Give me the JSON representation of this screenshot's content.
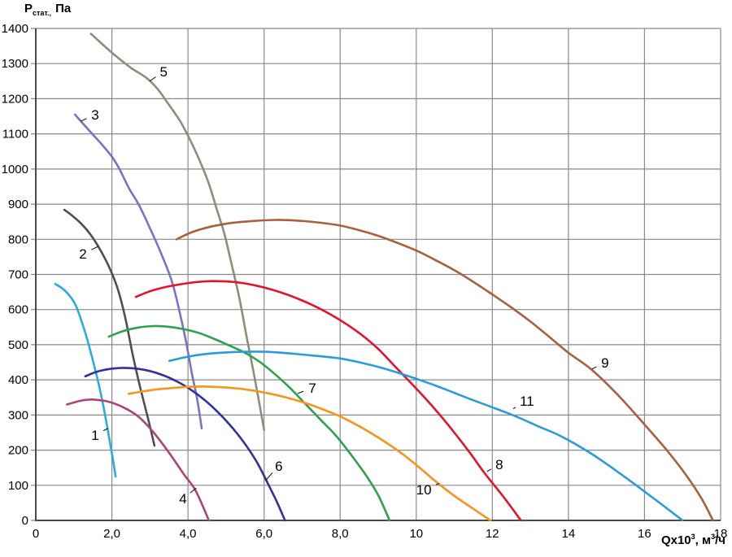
{
  "figure": {
    "y_axis_title": {
      "symbol": "Р",
      "subscript": "стат.,",
      "unit": "Па"
    },
    "x_axis_title": {
      "prefix": "Qx10",
      "sup1": "3",
      "mid": ", м",
      "sup2": "3",
      "suffix": "/ч"
    }
  },
  "colors": {
    "grid": "#8a8a8a",
    "axis": "#4a4a4a",
    "text": "#000000",
    "leader": "#1a1a1a"
  },
  "chart_data": {
    "type": "line",
    "title": "",
    "ylabel": "Р стат., Па",
    "xlabel": "Qx10³, м³/ч",
    "xlim": [
      0,
      18
    ],
    "ylim": [
      0,
      1400
    ],
    "grid": true,
    "legend_position": "none",
    "y_ticks": [
      1400,
      1300,
      1200,
      1100,
      1000,
      900,
      800,
      700,
      600,
      500,
      400,
      300,
      200,
      100,
      0
    ],
    "x_ticks": [
      {
        "label": "0",
        "value": 0
      },
      {
        "label": "2,0",
        "value": 2
      },
      {
        "label": "4,0",
        "value": 4
      },
      {
        "label": "6,0",
        "value": 6
      },
      {
        "label": "8,0",
        "value": 8
      },
      {
        "label": "10",
        "value": 10
      },
      {
        "label": "12",
        "value": 12
      },
      {
        "label": "14",
        "value": 14
      },
      {
        "label": "16",
        "value": 16
      },
      {
        "label": "18",
        "value": 18
      }
    ],
    "series": [
      {
        "id": "1",
        "label": "1",
        "color": "#2aabe2",
        "label_pos": [
          1.56,
          243
        ],
        "leader_end": [
          1.9,
          262
        ],
        "points": [
          [
            0.51,
            673
          ],
          [
            0.7,
            660
          ],
          [
            0.9,
            638
          ],
          [
            1.05,
            612
          ],
          [
            1.2,
            568
          ],
          [
            1.35,
            516
          ],
          [
            1.5,
            455
          ],
          [
            1.65,
            390
          ],
          [
            1.8,
            312
          ],
          [
            1.95,
            222
          ],
          [
            2.1,
            125
          ]
        ]
      },
      {
        "id": "2",
        "label": "2",
        "color": "#4d4d57",
        "label_pos": [
          1.24,
          759
        ],
        "leader_end": [
          1.65,
          780
        ],
        "points": [
          [
            0.75,
            884
          ],
          [
            0.95,
            868
          ],
          [
            1.2,
            844
          ],
          [
            1.45,
            812
          ],
          [
            1.7,
            769
          ],
          [
            1.95,
            716
          ],
          [
            2.15,
            660
          ],
          [
            2.35,
            578
          ],
          [
            2.55,
            470
          ],
          [
            2.75,
            376
          ],
          [
            2.95,
            290
          ],
          [
            3.12,
            213
          ]
        ]
      },
      {
        "id": "3",
        "label": "3",
        "color": "#7873c5",
        "label_pos": [
          1.56,
          1155
        ],
        "leader_end": [
          1.18,
          1136
        ],
        "points": [
          [
            1.03,
            1155
          ],
          [
            1.25,
            1128
          ],
          [
            1.5,
            1098
          ],
          [
            1.75,
            1068
          ],
          [
            2.0,
            1035
          ],
          [
            2.2,
            1000
          ],
          [
            2.45,
            945
          ],
          [
            2.7,
            900
          ],
          [
            3.0,
            832
          ],
          [
            3.3,
            758
          ],
          [
            3.6,
            672
          ],
          [
            3.9,
            535
          ],
          [
            4.1,
            420
          ],
          [
            4.25,
            340
          ],
          [
            4.36,
            262
          ]
        ]
      },
      {
        "id": "4",
        "label": "4",
        "color": "#ad4478",
        "label_pos": [
          3.87,
          62
        ],
        "leader_end": [
          4.22,
          92
        ],
        "points": [
          [
            0.82,
            330
          ],
          [
            1.2,
            341
          ],
          [
            1.5,
            344
          ],
          [
            1.9,
            338
          ],
          [
            2.3,
            322
          ],
          [
            2.7,
            295
          ],
          [
            3.1,
            250
          ],
          [
            3.5,
            193
          ],
          [
            3.9,
            130
          ],
          [
            4.2,
            85
          ],
          [
            4.55,
            0
          ]
        ]
      },
      {
        "id": "5",
        "label": "5",
        "color": "#8e8d79",
        "label_pos": [
          3.36,
          1277
        ],
        "leader_end": [
          2.99,
          1250
        ],
        "points": [
          [
            1.45,
            1385
          ],
          [
            1.75,
            1355
          ],
          [
            2.1,
            1322
          ],
          [
            2.5,
            1288
          ],
          [
            2.9,
            1260
          ],
          [
            3.2,
            1228
          ],
          [
            3.5,
            1183
          ],
          [
            3.8,
            1135
          ],
          [
            4.1,
            1073
          ],
          [
            4.35,
            1013
          ],
          [
            4.55,
            958
          ],
          [
            4.75,
            888
          ],
          [
            4.95,
            818
          ],
          [
            5.15,
            728
          ],
          [
            5.35,
            633
          ],
          [
            5.55,
            518
          ],
          [
            5.72,
            424
          ],
          [
            5.88,
            330
          ],
          [
            6.0,
            258
          ]
        ]
      },
      {
        "id": "6",
        "label": "6",
        "color": "#31319b",
        "label_pos": [
          6.39,
          155
        ],
        "leader_end": [
          6.03,
          113
        ],
        "points": [
          [
            1.3,
            410
          ],
          [
            1.6,
            423
          ],
          [
            1.95,
            431
          ],
          [
            2.3,
            434
          ],
          [
            2.65,
            432
          ],
          [
            3.0,
            425
          ],
          [
            3.35,
            413
          ],
          [
            3.7,
            396
          ],
          [
            4.05,
            374
          ],
          [
            4.4,
            346
          ],
          [
            4.75,
            312
          ],
          [
            5.1,
            272
          ],
          [
            5.45,
            225
          ],
          [
            5.8,
            168
          ],
          [
            6.1,
            105
          ],
          [
            6.35,
            50
          ],
          [
            6.55,
            0
          ]
        ]
      },
      {
        "id": "7",
        "label": "7",
        "color": "#2ca24c",
        "label_pos": [
          7.27,
          377
        ],
        "leader_end": [
          6.88,
          361
        ],
        "points": [
          [
            1.92,
            523
          ],
          [
            2.3,
            539
          ],
          [
            2.7,
            549
          ],
          [
            3.1,
            553
          ],
          [
            3.5,
            551
          ],
          [
            3.9,
            544
          ],
          [
            4.3,
            533
          ],
          [
            4.7,
            516
          ],
          [
            5.1,
            497
          ],
          [
            5.5,
            477
          ],
          [
            5.9,
            450
          ],
          [
            6.3,
            415
          ],
          [
            6.7,
            375
          ],
          [
            7.1,
            330
          ],
          [
            7.5,
            285
          ],
          [
            7.9,
            240
          ],
          [
            8.3,
            185
          ],
          [
            8.7,
            125
          ],
          [
            9.0,
            72
          ],
          [
            9.3,
            0
          ]
        ]
      },
      {
        "id": "8",
        "label": "8",
        "color": "#e4122b",
        "label_pos": [
          12.18,
          160
        ],
        "leader_end": [
          11.86,
          139
        ],
        "points": [
          [
            2.63,
            636
          ],
          [
            3.0,
            652
          ],
          [
            3.4,
            664
          ],
          [
            3.8,
            672
          ],
          [
            4.2,
            678
          ],
          [
            4.6,
            681
          ],
          [
            5.0,
            680
          ],
          [
            5.4,
            676
          ],
          [
            5.8,
            668
          ],
          [
            6.2,
            657
          ],
          [
            6.6,
            643
          ],
          [
            7.0,
            626
          ],
          [
            7.4,
            606
          ],
          [
            7.8,
            583
          ],
          [
            8.2,
            556
          ],
          [
            8.6,
            525
          ],
          [
            9.0,
            488
          ],
          [
            9.4,
            443
          ],
          [
            9.8,
            398
          ],
          [
            10.2,
            352
          ],
          [
            10.6,
            303
          ],
          [
            11.0,
            250
          ],
          [
            11.4,
            194
          ],
          [
            11.8,
            134
          ],
          [
            12.3,
            66
          ],
          [
            12.75,
            0
          ]
        ]
      },
      {
        "id": "9",
        "label": "9",
        "color": "#a8603f",
        "label_pos": [
          14.96,
          449
        ],
        "leader_end": [
          14.62,
          431
        ],
        "points": [
          [
            3.7,
            800
          ],
          [
            4.1,
            820
          ],
          [
            4.6,
            836
          ],
          [
            5.1,
            846
          ],
          [
            5.7,
            852
          ],
          [
            6.3,
            855
          ],
          [
            6.9,
            853
          ],
          [
            7.5,
            847
          ],
          [
            8.0,
            839
          ],
          [
            8.5,
            826
          ],
          [
            9.0,
            810
          ],
          [
            9.5,
            790
          ],
          [
            10.0,
            768
          ],
          [
            10.5,
            741
          ],
          [
            11.0,
            712
          ],
          [
            11.5,
            679
          ],
          [
            12.0,
            643
          ],
          [
            12.5,
            606
          ],
          [
            13.0,
            566
          ],
          [
            13.5,
            522
          ],
          [
            14.0,
            477
          ],
          [
            14.6,
            430
          ],
          [
            15.3,
            357
          ],
          [
            16.0,
            273
          ],
          [
            16.6,
            198
          ],
          [
            17.1,
            128
          ],
          [
            17.5,
            62
          ],
          [
            17.8,
            0
          ]
        ]
      },
      {
        "id": "10",
        "label": "10",
        "color": "#f7941d",
        "label_pos": [
          10.2,
          88
        ],
        "leader_end": [
          10.6,
          105
        ],
        "points": [
          [
            2.44,
            360
          ],
          [
            2.8,
            367
          ],
          [
            3.2,
            373
          ],
          [
            3.6,
            377
          ],
          [
            4.0,
            380
          ],
          [
            4.5,
            381
          ],
          [
            5.0,
            378
          ],
          [
            5.5,
            373
          ],
          [
            6.0,
            364
          ],
          [
            6.5,
            352
          ],
          [
            7.0,
            337
          ],
          [
            7.5,
            318
          ],
          [
            8.0,
            296
          ],
          [
            8.5,
            268
          ],
          [
            9.0,
            236
          ],
          [
            9.5,
            200
          ],
          [
            10.0,
            158
          ],
          [
            10.5,
            112
          ],
          [
            11.0,
            70
          ],
          [
            11.5,
            33
          ],
          [
            11.95,
            0
          ]
        ]
      },
      {
        "id": "11",
        "label": "11",
        "color": "#2b9cd8",
        "label_pos": [
          12.91,
          340
        ],
        "leader_end": [
          12.55,
          318
        ],
        "points": [
          [
            3.51,
            454
          ],
          [
            4.0,
            466
          ],
          [
            4.5,
            474
          ],
          [
            5.0,
            478
          ],
          [
            5.5,
            480
          ],
          [
            6.0,
            480
          ],
          [
            6.5,
            477
          ],
          [
            7.0,
            472
          ],
          [
            7.5,
            467
          ],
          [
            8.0,
            461
          ],
          [
            8.5,
            450
          ],
          [
            9.0,
            437
          ],
          [
            9.5,
            421
          ],
          [
            10.0,
            403
          ],
          [
            10.5,
            384
          ],
          [
            11.0,
            363
          ],
          [
            11.5,
            342
          ],
          [
            12.0,
            322
          ],
          [
            12.6,
            297
          ],
          [
            13.2,
            268
          ],
          [
            13.8,
            240
          ],
          [
            14.6,
            190
          ],
          [
            15.4,
            130
          ],
          [
            16.2,
            66
          ],
          [
            17.0,
            0
          ]
        ]
      }
    ]
  }
}
